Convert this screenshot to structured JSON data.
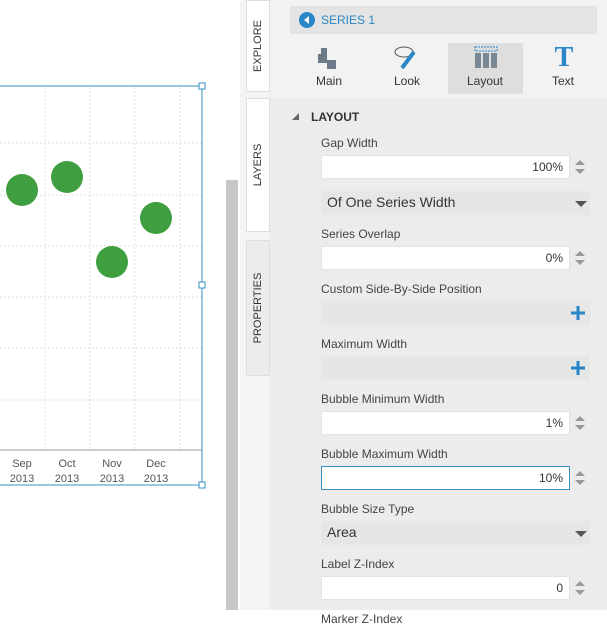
{
  "chart": {
    "x_labels": [
      {
        "month": "Sep",
        "year": "2013"
      },
      {
        "month": "Oct",
        "year": "2013"
      },
      {
        "month": "Nov",
        "year": "2013"
      },
      {
        "month": "Dec",
        "year": "2013"
      }
    ]
  },
  "tabs": [
    "EXPLORE",
    "LAYERS",
    "PROPERTIES"
  ],
  "header": {
    "title": "SERIES 1"
  },
  "toolbar": [
    "Main",
    "Look",
    "Layout",
    "Text"
  ],
  "section": "LAYOUT",
  "fields": [
    {
      "label": "Gap Width",
      "value": "100%",
      "kind": "spin"
    },
    {
      "label": null,
      "value": "Of One Series Width",
      "kind": "select"
    },
    {
      "label": "Series Overlap",
      "value": "0%",
      "kind": "spin"
    },
    {
      "label": "Custom Side-By-Side Position",
      "value": null,
      "kind": "add"
    },
    {
      "label": "Maximum Width",
      "value": null,
      "kind": "add"
    },
    {
      "label": "Bubble Minimum Width",
      "value": "1%",
      "kind": "spin"
    },
    {
      "label": "Bubble Maximum Width",
      "value": "10%",
      "kind": "spin",
      "focused": true
    },
    {
      "label": "Bubble Size Type",
      "value": "Area",
      "kind": "select"
    },
    {
      "label": "Label Z-Index",
      "value": "0",
      "kind": "spin"
    },
    {
      "label": "Marker Z-Index",
      "value": null,
      "kind": "cut"
    }
  ]
}
